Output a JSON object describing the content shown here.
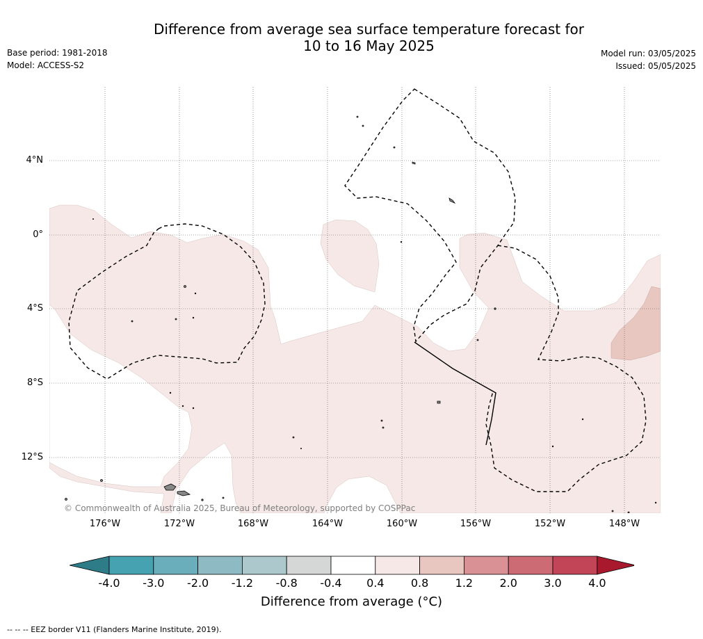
{
  "title_line1": "Difference from average sea surface temperature forecast for",
  "title_line2": "10 to 16 May 2025",
  "base_period": "Base period: 1981-2018",
  "model": "Model: ACCESS-S2",
  "model_run": "Model run: 03/05/2025",
  "issued": "Issued: 05/05/2025",
  "lat_labels": [
    "4°N",
    "0°",
    "4°S",
    "8°S",
    "12°S"
  ],
  "lon_labels": [
    "176°W",
    "172°W",
    "168°W",
    "164°W",
    "160°W",
    "156°W",
    "152°W",
    "148°W"
  ],
  "copyright": "© Commonwealth of Australia 2025, Bureau of Meteorology, supported by COSPPac",
  "colorbar": {
    "ticks": [
      "-4.0",
      "-3.0",
      "-2.0",
      "-1.2",
      "-0.8",
      "-0.4",
      "0.4",
      "0.8",
      "1.2",
      "2.0",
      "3.0",
      "4.0"
    ],
    "colors": [
      "#2e7c88",
      "#46a1b1",
      "#6aaebb",
      "#8ebac4",
      "#acc8cc",
      "#d4d7d6",
      "#ffffff",
      "#f5e8e6",
      "#e8c7c1",
      "#d99196",
      "#cc6b74",
      "#c14556",
      "#a8192e"
    ],
    "label": "Difference from average (°C)"
  },
  "legend_colors": {
    "anomaly_0_4_to_0_8": "#f5e8e6",
    "anomaly_0_8_to_1_2": "#e8c7c1"
  },
  "footnote": "--  --  -- EEZ border V11 (Flanders Marine Institute, 2019)."
}
